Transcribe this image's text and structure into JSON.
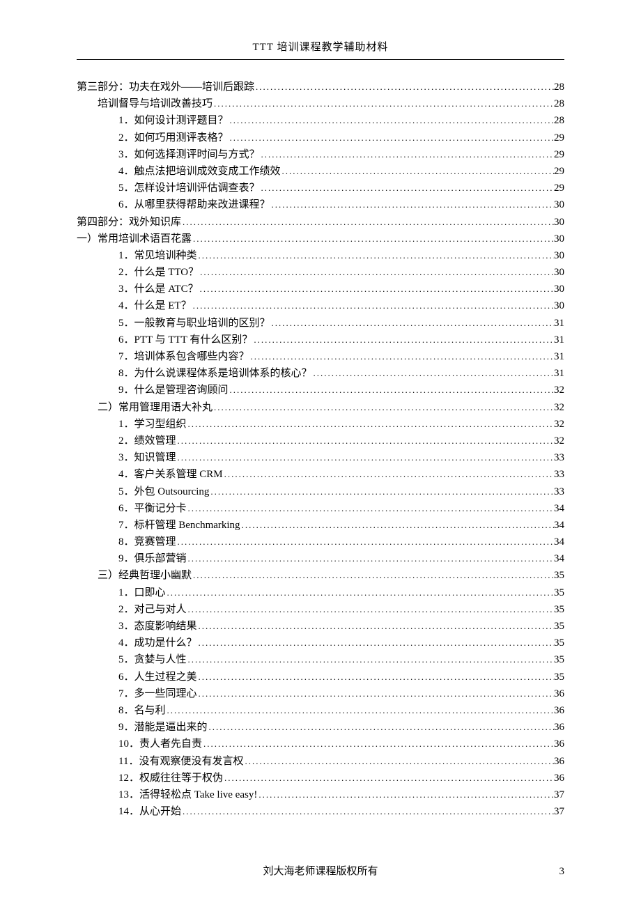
{
  "header": {
    "title": "TTT 培训课程教学辅助材料"
  },
  "footer": {
    "text": "刘大海老师课程版权所有",
    "page_number": "3"
  },
  "toc": [
    {
      "indent": 0,
      "label": "第三部分：功夫在戏外——培训后跟踪",
      "page": "28"
    },
    {
      "indent": 1,
      "label": "培训督导与培训改善技巧",
      "page": "28"
    },
    {
      "indent": 2,
      "label": "1．如何设计测评题目？",
      "page": "28"
    },
    {
      "indent": 2,
      "label": "2．如何巧用测评表格？",
      "page": "29"
    },
    {
      "indent": 2,
      "label": "3．如何选择测评时间与方式？",
      "page": "29"
    },
    {
      "indent": 2,
      "label": "4．触点法把培训成效变成工作绩效",
      "page": "29"
    },
    {
      "indent": 2,
      "label": "5．怎样设计培训评估调查表？",
      "page": "29"
    },
    {
      "indent": 2,
      "label": "6．从哪里获得帮助来改进课程？",
      "page": "30"
    },
    {
      "indent": 0,
      "label": "第四部分：戏外知识库",
      "page": "30"
    },
    {
      "indent": 0,
      "label": "一）常用培训术语百花露",
      "page": "30"
    },
    {
      "indent": 2,
      "label": "1．常见培训种类",
      "page": "30"
    },
    {
      "indent": 2,
      "label": "2．什么是 TTO？",
      "page": "30"
    },
    {
      "indent": 2,
      "label": "3．什么是 ATC？",
      "page": "30"
    },
    {
      "indent": 2,
      "label": "4．什么是 ET？",
      "page": "30"
    },
    {
      "indent": 2,
      "label": "5．一般教育与职业培训的区别？",
      "page": "31"
    },
    {
      "indent": 2,
      "label": "6．PTT 与 TTT 有什么区别？",
      "page": "31"
    },
    {
      "indent": 2,
      "label": "7．培训体系包含哪些内容？",
      "page": "31"
    },
    {
      "indent": 2,
      "label": "8．为什么说课程体系是培训体系的核心？",
      "page": "31"
    },
    {
      "indent": 2,
      "label": "9．什么是管理咨询顾问",
      "page": "32"
    },
    {
      "indent": 1,
      "label": "二）常用管理用语大补丸",
      "page": "32"
    },
    {
      "indent": 2,
      "label": "1．学习型组织",
      "page": "32"
    },
    {
      "indent": 2,
      "label": "2．绩效管理",
      "page": "32"
    },
    {
      "indent": 2,
      "label": "3．知识管理",
      "page": "33"
    },
    {
      "indent": 2,
      "label": "4．客户关系管理 CRM",
      "page": "33"
    },
    {
      "indent": 2,
      "label": "5．外包 Outsourcing",
      "page": "33"
    },
    {
      "indent": 2,
      "label": "6．平衡记分卡",
      "page": "34"
    },
    {
      "indent": 2,
      "label": "7．标杆管理 Benchmarking",
      "page": "34"
    },
    {
      "indent": 2,
      "label": "8．竞赛管理",
      "page": "34"
    },
    {
      "indent": 2,
      "label": "9．俱乐部营销",
      "page": "34"
    },
    {
      "indent": 1,
      "label": "三）经典哲理小幽默",
      "page": "35"
    },
    {
      "indent": 2,
      "label": "1．口即心",
      "page": "35"
    },
    {
      "indent": 2,
      "label": "2．对己与对人",
      "page": "35"
    },
    {
      "indent": 2,
      "label": "3．态度影响结果",
      "page": "35"
    },
    {
      "indent": 2,
      "label": "4．成功是什么？",
      "page": "35"
    },
    {
      "indent": 2,
      "label": "5．贪婪与人性",
      "page": "35"
    },
    {
      "indent": 2,
      "label": "6．人生过程之美",
      "page": "35"
    },
    {
      "indent": 2,
      "label": "7．多一些同理心",
      "page": "36"
    },
    {
      "indent": 2,
      "label": "8．名与利",
      "page": "36"
    },
    {
      "indent": 2,
      "label": "9．潜能是逼出来的",
      "page": "36"
    },
    {
      "indent": 2,
      "label": "10．责人者先自责",
      "page": "36"
    },
    {
      "indent": 2,
      "label": "11．没有观察便没有发言权",
      "page": "36"
    },
    {
      "indent": 2,
      "label": "12．权威往往等于权伪",
      "page": "36"
    },
    {
      "indent": 2,
      "label": "13．活得轻松点 Take live easy!",
      "page": "37"
    },
    {
      "indent": 2,
      "label": "14．从心开始",
      "page": "37"
    }
  ]
}
